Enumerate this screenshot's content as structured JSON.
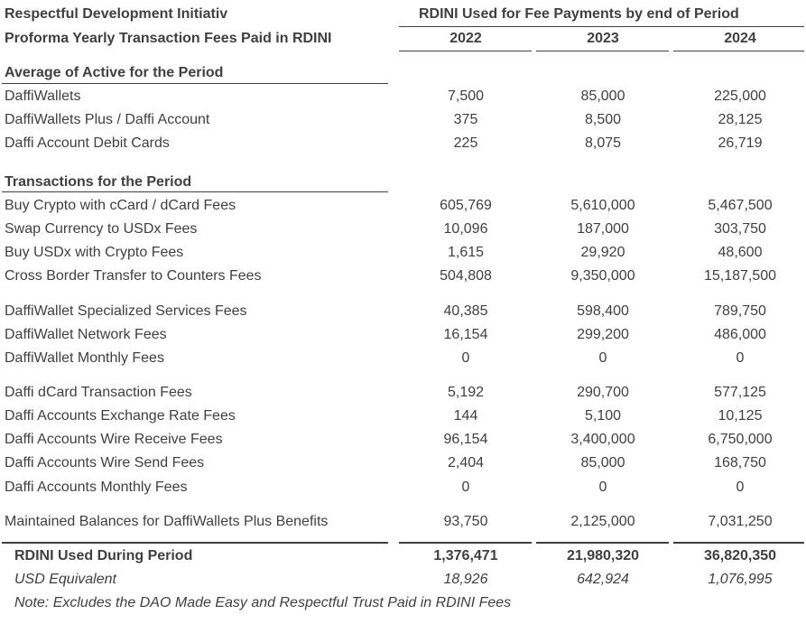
{
  "header": {
    "title": "Respectful Development Initiativ",
    "subtitle": "Proforma Yearly Transaction Fees Paid in RDINI",
    "group_title": "RDINI Used for Fee Payments by end of Period",
    "years": [
      "2022",
      "2023",
      "2024"
    ]
  },
  "sections": [
    {
      "heading": "Average of Active for the Period",
      "rows": [
        {
          "label": "DaffiWallets",
          "values": [
            "7,500",
            "85,000",
            "225,000"
          ]
        },
        {
          "label": "DaffiWallets Plus / Daffi Account",
          "values": [
            "375",
            "8,500",
            "28,125"
          ]
        },
        {
          "label": "Daffi Account Debit Cards",
          "values": [
            "225",
            "8,075",
            "26,719"
          ]
        }
      ]
    },
    {
      "heading": "Transactions for the Period",
      "rows": [
        {
          "label": "Buy Crypto with cCard / dCard Fees",
          "values": [
            "605,769",
            "5,610,000",
            "5,467,500"
          ]
        },
        {
          "label": "Swap Currency to USDx Fees",
          "values": [
            "10,096",
            "187,000",
            "303,750"
          ]
        },
        {
          "label": "Buy USDx with Crypto Fees",
          "values": [
            "1,615",
            "29,920",
            "48,600"
          ]
        },
        {
          "label": "Cross Border Transfer to Counters Fees",
          "values": [
            "504,808",
            "9,350,000",
            "15,187,500"
          ]
        },
        {
          "label": "DaffiWallet Specialized Services Fees",
          "values": [
            "40,385",
            "598,400",
            "789,750"
          ]
        },
        {
          "label": "DaffiWallet Network Fees",
          "values": [
            "16,154",
            "299,200",
            "486,000"
          ]
        },
        {
          "label": "DaffiWallet Monthly Fees",
          "values": [
            "0",
            "0",
            "0"
          ]
        },
        {
          "label": "Daffi dCard Transaction Fees",
          "values": [
            "5,192",
            "290,700",
            "577,125"
          ]
        },
        {
          "label": "Daffi Accounts Exchange Rate Fees",
          "values": [
            "144",
            "5,100",
            "10,125"
          ]
        },
        {
          "label": "Daffi Accounts Wire Receive Fees",
          "values": [
            "96,154",
            "3,400,000",
            "6,750,000"
          ]
        },
        {
          "label": "Daffi Accounts Wire Send Fees",
          "values": [
            "2,404",
            "85,000",
            "168,750"
          ]
        },
        {
          "label": "Daffi Accounts Monthly Fees",
          "values": [
            "0",
            "0",
            "0"
          ]
        },
        {
          "label": "Maintained Balances for DaffiWallets Plus Benefits",
          "values": [
            "93,750",
            "2,125,000",
            "7,031,250"
          ]
        }
      ]
    }
  ],
  "totals": {
    "label": "RDINI Used During Period",
    "values": [
      "1,376,471",
      "21,980,320",
      "36,820,350"
    ],
    "usd_label": "USD Equivalent",
    "usd_values": [
      "18,926",
      "642,924",
      "1,076,995"
    ]
  },
  "note": "Note: Excludes the DAO Made Easy and Respectful Trust Paid in RDINI Fees"
}
